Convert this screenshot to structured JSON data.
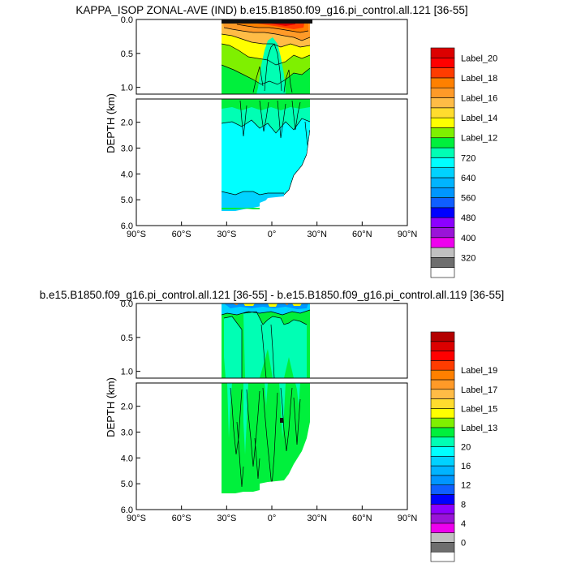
{
  "colors": [
    "#ffffff",
    "#6e6e6e",
    "#c0c0c0",
    "#ee00ee",
    "#9a14d8",
    "#8c00ff",
    "#0000ff",
    "#0f5fff",
    "#0096ff",
    "#00b4ff",
    "#00d2ff",
    "#00ffff",
    "#00ffb4",
    "#00f03c",
    "#7ff000",
    "#ffff00",
    "#ffdc2e",
    "#ffbc46",
    "#ff9a28",
    "#ff8000",
    "#ff3c00",
    "#ff0000",
    "#dc0000",
    "#b40000"
  ],
  "chart_data": [
    {
      "type": "contour",
      "title": "KAPPA_ISOP ZONAL-AVE (IND) b.e15.B1850.f09_g16.pi_control.all.121 [36-55]",
      "ylabel": "DEPTH (km)",
      "x_ticks": [
        "90°S",
        "60°S",
        "30°S",
        "0°",
        "30°N",
        "60°N",
        "90°N"
      ],
      "xlim": [
        -90,
        90
      ],
      "y_ticks_upper": [
        "0.0",
        "0.5",
        "1.0"
      ],
      "y_ticks_lower": [
        "2.0",
        "3.0",
        "4.0",
        "5.0",
        "6.0"
      ],
      "ylim_upper": [
        0,
        1.1
      ],
      "ylim_lower": [
        1.1,
        6.0
      ],
      "colorbar_labels": [
        "320",
        "400",
        "480",
        "560",
        "640",
        "720",
        "Label_12",
        "Label_14",
        "Label_16",
        "Label_18",
        "Label_20"
      ]
    },
    {
      "type": "contour",
      "title": "b.e15.B1850.f09_g16.pi_control.all.121 [36-55] - b.e15.B1850.f09_g16.pi_control.all.119 [36-55]",
      "ylabel": "DEPTH (km)",
      "x_ticks": [
        "90°S",
        "60°S",
        "30°S",
        "0°",
        "30°N",
        "60°N",
        "90°N"
      ],
      "xlim": [
        -90,
        90
      ],
      "y_ticks_upper": [
        "0.0",
        "0.5",
        "1.0"
      ],
      "y_ticks_lower": [
        "2.0",
        "3.0",
        "4.0",
        "5.0",
        "6.0"
      ],
      "ylim_upper": [
        0,
        1.1
      ],
      "ylim_lower": [
        1.1,
        6.0
      ],
      "colorbar_labels": [
        "0",
        "4",
        "8",
        "12",
        "16",
        "20",
        "Label_13",
        "Label_15",
        "Label_17",
        "Label_19"
      ]
    }
  ]
}
